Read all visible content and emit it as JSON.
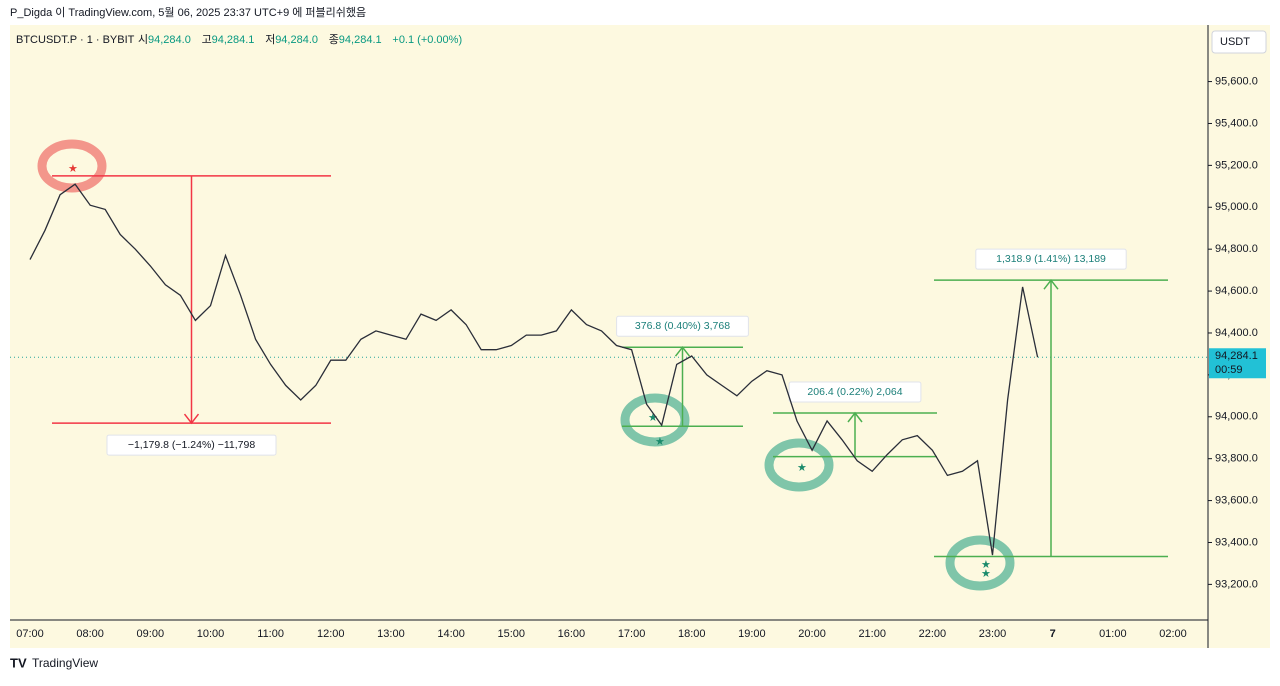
{
  "header": {
    "publisher": "P_Digda 이 TradingView.com, 5월 06, 2025 23:37 UTC+9 에 퍼블리쉬했음"
  },
  "legend": {
    "symbol": "BTCUSDT.P · 1 · BYBIT",
    "fields": [
      {
        "label": "시",
        "value": "94,284.0"
      },
      {
        "label": "고",
        "value": "94,284.1"
      },
      {
        "label": "저",
        "value": "94,284.0"
      },
      {
        "label": "종",
        "value": "94,284.1"
      }
    ],
    "change": "+0.1 (+0.00%)"
  },
  "currency": "USDT",
  "price_tag": {
    "price": "94,284.1",
    "countdown": "00:59"
  },
  "footer": {
    "brand": "TradingView"
  },
  "chart_data": {
    "type": "line",
    "color": "#2a2e39",
    "categories": [
      "07:00",
      null,
      null,
      null,
      "08:00",
      null,
      null,
      null,
      "09:00",
      null,
      null,
      null,
      "10:00",
      null,
      null,
      null,
      "11:00",
      null,
      null,
      null,
      "12:00",
      null,
      null,
      null,
      "13:00",
      null,
      null,
      null,
      "14:00",
      null,
      null,
      null,
      "15:00",
      null,
      null,
      null,
      "16:00",
      null,
      null,
      null,
      "17:00",
      null,
      null,
      null,
      "18:00",
      null,
      null,
      null,
      "19:00",
      null,
      null,
      null,
      "20:00",
      null,
      null,
      null,
      "21:00",
      null,
      null,
      null,
      "22:00",
      null,
      null,
      null,
      "23:00",
      null,
      null,
      null,
      "7",
      null,
      null,
      null,
      "01:00",
      null,
      null,
      null,
      "02:00"
    ],
    "series": [
      {
        "name": "BTCUSDT.P",
        "values": [
          94750,
          94890,
          95060,
          95110,
          95010,
          94990,
          94870,
          94800,
          94720,
          94630,
          94580,
          94460,
          94530,
          94770,
          94580,
          94370,
          94250,
          94150,
          94080,
          94150,
          94270,
          94270,
          94370,
          94410,
          94390,
          94370,
          94490,
          94460,
          94510,
          94440,
          94320,
          94320,
          94340,
          94390,
          94390,
          94410,
          94510,
          94440,
          94410,
          94340,
          94320,
          94060,
          93960,
          94250,
          94290,
          94200,
          94150,
          94100,
          94170,
          94220,
          94200,
          93980,
          93840,
          93980,
          93890,
          93790,
          93740,
          93820,
          93890,
          93910,
          93840,
          93720,
          93740,
          93790,
          93340,
          94080,
          94620,
          94284.1,
          null,
          null,
          null,
          null,
          null,
          null,
          null,
          null,
          null
        ]
      }
    ],
    "last_price": 94284.1,
    "ylim": [
      93030,
      95870
    ],
    "yticks": [
      {
        "value": 93200,
        "label": "93,200.0"
      },
      {
        "value": 93400,
        "label": "93,400.0"
      },
      {
        "value": 93600,
        "label": "93,600.0"
      },
      {
        "value": 93800,
        "label": "93,800.0"
      },
      {
        "value": 94000,
        "label": "94,000.0"
      },
      {
        "value": 94200,
        "label": "94,200.0"
      },
      {
        "value": 94400,
        "label": "94,400.0"
      },
      {
        "value": 94600,
        "label": "94,600.0"
      },
      {
        "value": 94800,
        "label": "94,800.0"
      },
      {
        "value": 95000,
        "label": "95,000.0"
      },
      {
        "value": 95200,
        "label": "95,200.0"
      },
      {
        "value": 95400,
        "label": "95,400.0"
      },
      {
        "value": 95600,
        "label": "95,600.0"
      }
    ],
    "measures": [
      {
        "from": 95150,
        "to": 93970,
        "label": "−1,179.8 (−1.24%) −11,798",
        "color": "#f23645"
      },
      {
        "from": 93955,
        "to": 94332,
        "label": "376.8 (0.40%) 3,768",
        "color": "#4caf50"
      },
      {
        "from": 93810,
        "to": 94018,
        "label": "206.4 (0.22%) 2,064",
        "color": "#4caf50"
      },
      {
        "from": 93333,
        "to": 94652,
        "label": "1,318.9 (1.41%) 13,189",
        "color": "#4caf50"
      }
    ]
  }
}
